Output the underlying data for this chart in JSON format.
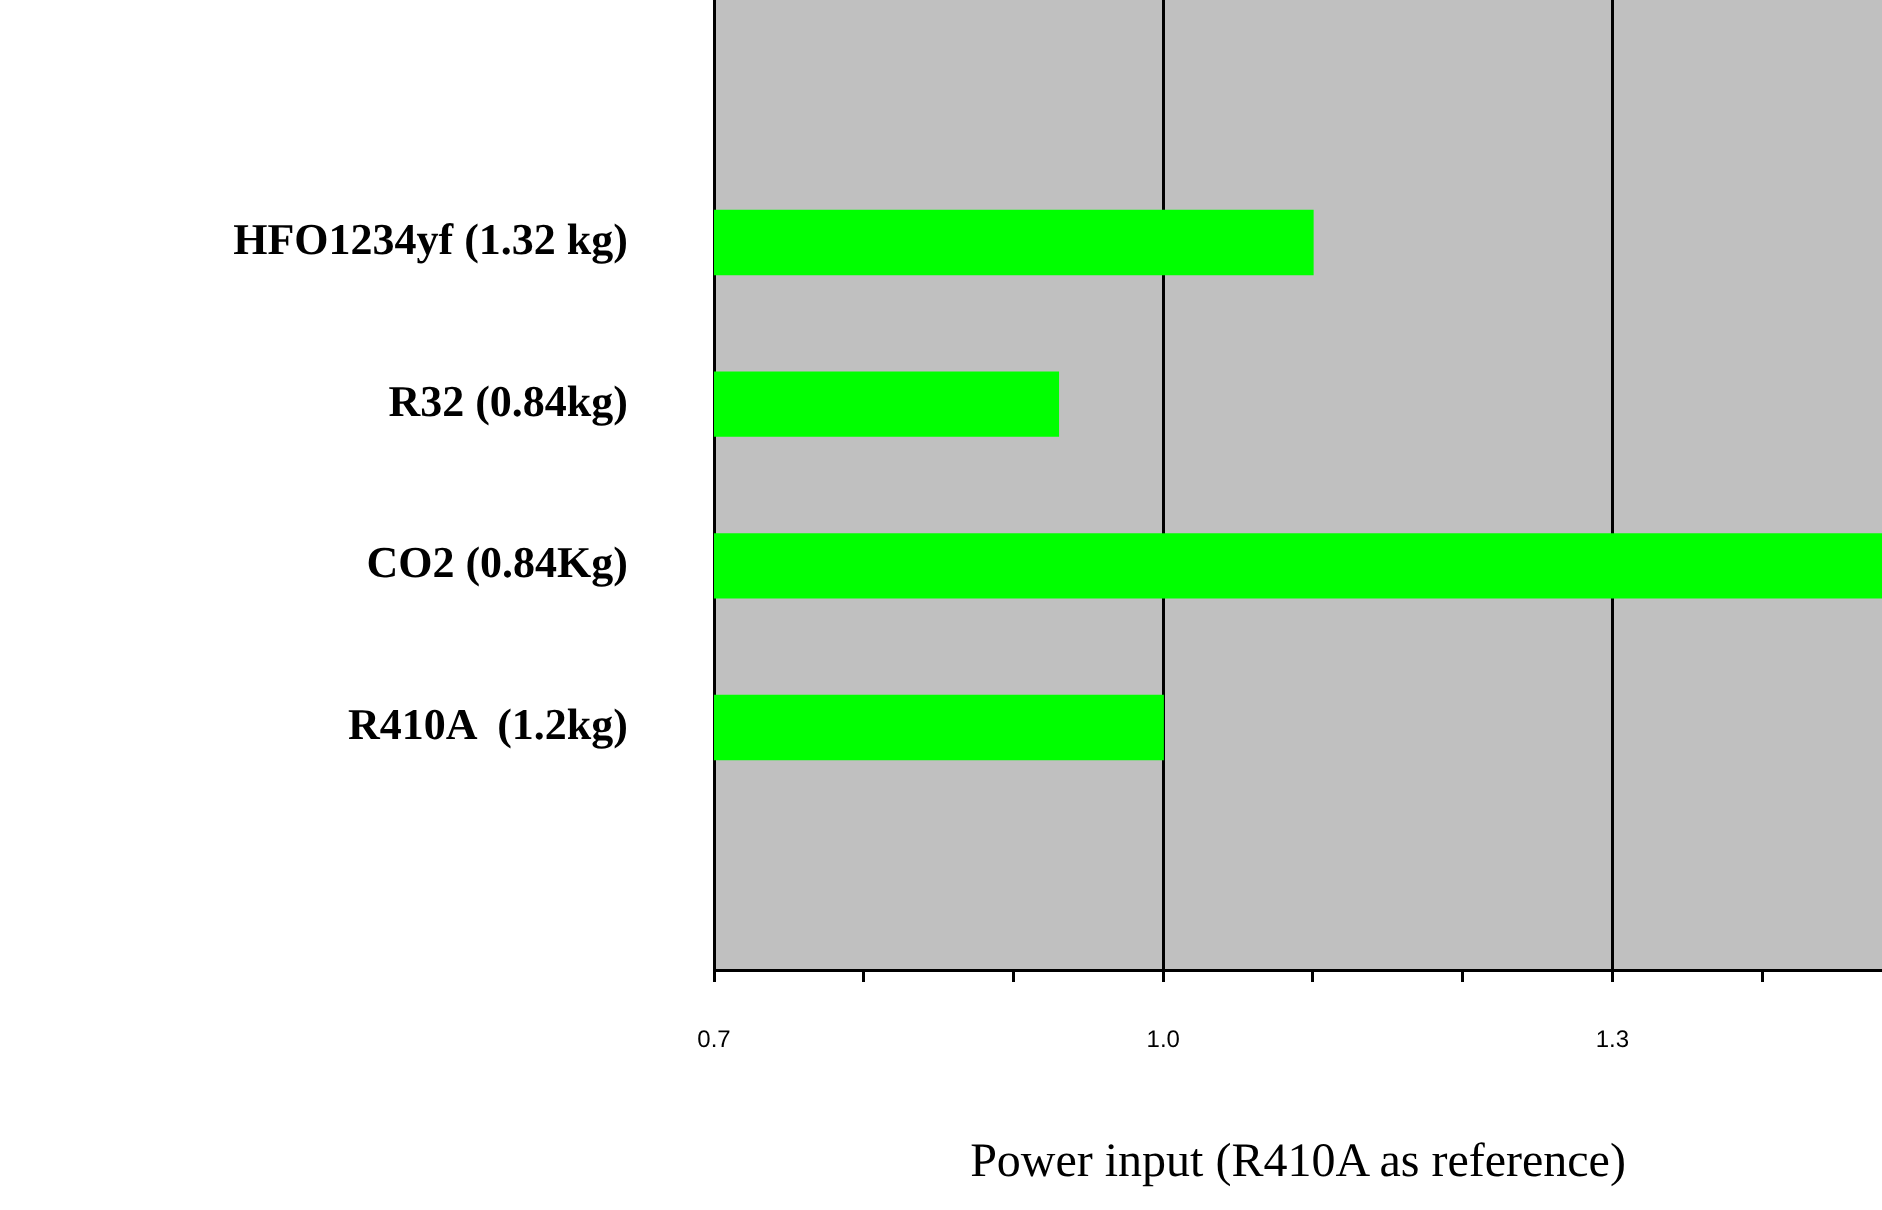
{
  "chart_data": {
    "type": "bar",
    "orientation": "horizontal",
    "xlabel": "Power input (R410A as reference)",
    "categories": [
      null,
      "HFO1234yf (1.32 kg)",
      "R32 (0.84kg)",
      "CO2 (0.84Kg)",
      "R410A  (1.2kg)",
      null
    ],
    "values": [
      null,
      1.1,
      0.93,
      1.48,
      1.0,
      null
    ],
    "color": "#00ff00",
    "xlim": [
      0.7,
      1.48
    ],
    "xticks": [
      {
        "value": 0.7,
        "label": "0.7"
      },
      {
        "value": 0.8,
        "label": null
      },
      {
        "value": 0.9,
        "label": null
      },
      {
        "value": 1.0,
        "label": "1.0"
      },
      {
        "value": 1.1,
        "label": null
      },
      {
        "value": 1.2,
        "label": null
      },
      {
        "value": 1.3,
        "label": "1.3"
      },
      {
        "value": 1.4,
        "label": null
      }
    ],
    "grid": "x",
    "legend": false
  }
}
